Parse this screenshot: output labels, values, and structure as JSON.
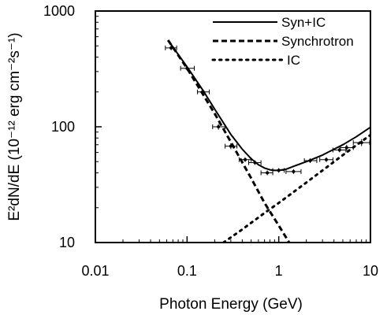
{
  "chart_data": {
    "type": "line",
    "title": "",
    "xlabel": "Photon Energy (GeV)",
    "ylabel": "E²dN/dE (10⁻¹² erg cm⁻²s⁻¹)",
    "xscale": "log",
    "yscale": "log",
    "xlim": [
      0.01,
      10
    ],
    "ylim": [
      10,
      1000
    ],
    "grid": false,
    "legend_position": "top-right",
    "x_ticks": [
      0.01,
      0.1,
      1,
      10
    ],
    "x_tick_labels": [
      "0.01",
      "0.1",
      "1",
      "10"
    ],
    "y_ticks": [
      10,
      100,
      1000
    ],
    "y_tick_labels": [
      "10",
      "100",
      "1000"
    ],
    "series": [
      {
        "name": "Syn+IC",
        "style": "solid",
        "color": "#000000",
        "x": [
          0.062,
          0.1,
          0.15,
          0.2,
          0.3,
          0.4,
          0.5,
          0.6,
          0.7,
          0.8,
          0.9,
          1.0,
          1.2,
          1.5,
          2.0,
          3.0,
          5.0,
          7.0,
          10.0
        ],
        "y": [
          560,
          330,
          205,
          142,
          86,
          64,
          53,
          47,
          44,
          42.5,
          42,
          42,
          43,
          46,
          50,
          57,
          70,
          82,
          99
        ]
      },
      {
        "name": "Synchrotron",
        "style": "dashed",
        "color": "#000000",
        "x": [
          0.062,
          0.1,
          0.2,
          0.3,
          0.5,
          0.7,
          1.0,
          1.3
        ],
        "y": [
          560,
          320,
          130,
          74,
          36,
          22,
          14,
          10
        ]
      },
      {
        "name": "IC",
        "style": "dotted",
        "color": "#000000",
        "x": [
          0.25,
          0.4,
          0.7,
          1.0,
          2.0,
          3.0,
          5.0,
          10.0
        ],
        "y": [
          10,
          13,
          18,
          22,
          33,
          42,
          57,
          85
        ]
      }
    ],
    "data_points": {
      "name": "",
      "x": [
        0.067,
        0.1,
        0.15,
        0.22,
        0.3,
        0.43,
        0.55,
        0.75,
        1.0,
        1.45,
        2.2,
        3.3,
        4.6,
        5.5,
        8.0
      ],
      "y": [
        480,
        320,
        200,
        100,
        68,
        52,
        49,
        40,
        42,
        41,
        51,
        52,
        63,
        66,
        73
      ],
      "x_low": [
        0.058,
        0.085,
        0.13,
        0.19,
        0.26,
        0.37,
        0.47,
        0.64,
        0.86,
        1.2,
        1.9,
        2.8,
        3.9,
        4.7,
        6.5
      ],
      "x_high": [
        0.077,
        0.12,
        0.175,
        0.26,
        0.35,
        0.5,
        0.64,
        0.86,
        1.15,
        1.75,
        2.6,
        3.9,
        5.4,
        6.5,
        9.8
      ],
      "y_err": [
        0.02,
        0.02,
        0.02,
        0.025,
        0.025,
        0.02,
        0.02,
        0.02,
        0.02,
        0.02,
        0.02,
        0.02,
        0.02,
        0.025,
        0.03
      ]
    }
  }
}
